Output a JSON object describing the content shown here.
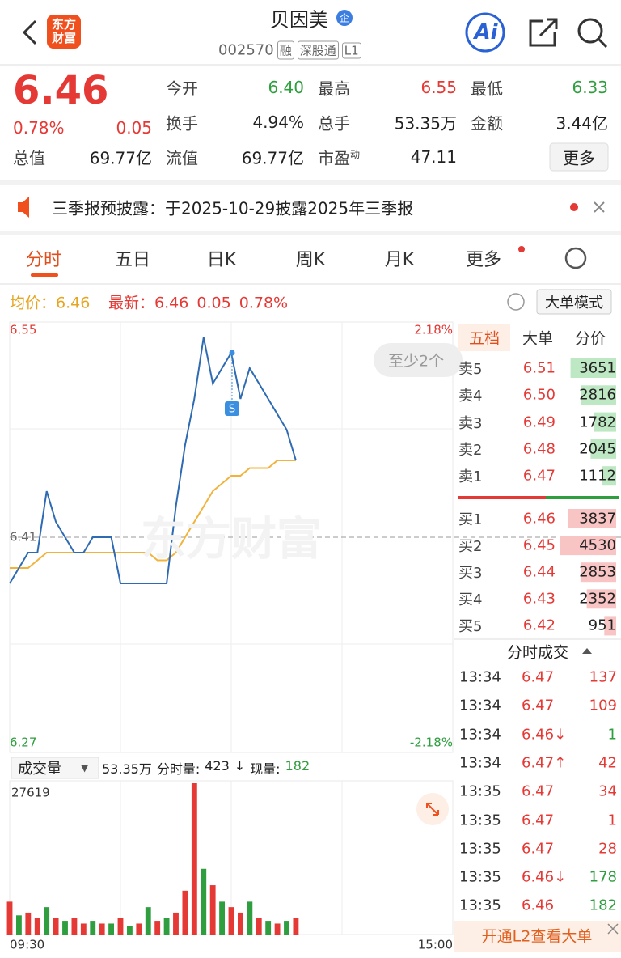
{
  "header": {
    "logo": "东方财富",
    "title": "贝因美",
    "badge": "企",
    "code": "002570",
    "tags": [
      "融",
      "深股通",
      "L1"
    ],
    "ai": "Ai"
  },
  "quote": {
    "price": "6.46",
    "change_pct": "0.78%",
    "change": "0.05",
    "more": "更多",
    "fields": [
      {
        "label": "今开",
        "value": "6.40",
        "color": "#2e9e3e"
      },
      {
        "label": "最高",
        "value": "6.55",
        "color": "#e53935"
      },
      {
        "label": "最低",
        "value": "6.33",
        "color": "#2e9e3e"
      },
      {
        "label": "换手",
        "value": "4.94%"
      },
      {
        "label": "总手",
        "value": "53.35万"
      },
      {
        "label": "金额",
        "value": "3.44亿"
      },
      {
        "label": "总值",
        "value": "69.77亿"
      },
      {
        "label": "流值",
        "value": "69.77亿"
      },
      {
        "label": "市盈",
        "sup": "动",
        "value": "47.11"
      }
    ]
  },
  "notice": "三季报预披露：于2025-10-29披露2025年三季报",
  "tabs": [
    "分时",
    "五日",
    "日K",
    "周K",
    "月K",
    "更多"
  ],
  "info": {
    "avg_label": "均价：",
    "avg": "6.46",
    "last_label": "最新：",
    "last": "6.46",
    "change": "0.05",
    "pct": "0.78%",
    "mode": "大单模式"
  },
  "toast": "至少2个",
  "watermark": "东方财富",
  "chart_data": [
    {
      "type": "line",
      "ylim": [
        6.27,
        6.55
      ],
      "yticks": [
        6.55,
        6.41,
        6.27
      ],
      "y2lim": [
        -2.18,
        2.18
      ],
      "y2ticks": [
        {
          "value": 2.18,
          "label": "2.18%"
        },
        {
          "value": -2.18,
          "label": "-2.18%"
        }
      ],
      "series": [
        {
          "color": "#2f6bb3",
          "values": [
            6.38,
            6.39,
            6.4,
            6.4,
            6.44,
            6.42,
            6.41,
            6.4,
            6.4,
            6.41,
            6.41,
            6.41,
            6.38,
            6.38,
            6.38,
            6.38,
            6.38,
            6.38,
            6.43,
            6.47,
            6.5,
            6.54,
            6.51,
            6.52,
            6.53,
            6.5,
            6.52,
            6.51,
            6.5,
            6.49,
            6.48,
            6.46,
            null,
            null,
            null,
            null,
            null,
            null,
            null,
            null,
            null,
            null,
            null,
            null,
            null,
            null,
            null,
            null,
            null
          ]
        },
        {
          "color": "#f2b33d",
          "values": [
            6.39,
            6.39,
            6.39,
            6.395,
            6.4,
            6.4,
            6.4,
            6.4,
            6.4,
            6.4,
            6.4,
            6.4,
            6.4,
            6.4,
            6.4,
            6.4,
            6.395,
            6.395,
            6.4,
            6.41,
            6.42,
            6.43,
            6.44,
            6.445,
            6.45,
            6.45,
            6.455,
            6.455,
            6.455,
            6.46,
            6.46,
            6.46,
            null,
            null,
            null,
            null,
            null,
            null,
            null,
            null,
            null,
            null,
            null,
            null,
            null,
            null,
            null,
            null,
            null
          ]
        }
      ]
    },
    {
      "type": "bar",
      "title": "成交量",
      "ylim": [
        0,
        27619
      ],
      "yticks": [
        27619
      ],
      "categories": [
        "09:30",
        null,
        null,
        null,
        null,
        null,
        null,
        null,
        null,
        null,
        null,
        null,
        null,
        null,
        null,
        null,
        null,
        null,
        null,
        null,
        null,
        null,
        null,
        null,
        null,
        null,
        null,
        null,
        null,
        null,
        null,
        null,
        null,
        null,
        null,
        null,
        null,
        null,
        null,
        null,
        null,
        null,
        null,
        null,
        null,
        null,
        null,
        null,
        "15:00"
      ],
      "values": [
        6000,
        3500,
        4000,
        3000,
        5000,
        3000,
        2500,
        3000,
        2000,
        2500,
        2000,
        2000,
        3000,
        1500,
        2000,
        5000,
        2500,
        3000,
        4000,
        8000,
        27619,
        12000,
        9000,
        6000,
        5000,
        4000,
        6000,
        3000,
        2500,
        2000,
        2500,
        3000,
        null,
        null,
        null,
        null,
        null,
        null,
        null,
        null,
        null,
        null,
        null,
        null,
        null,
        null,
        null,
        null,
        null
      ],
      "colors": [
        "#e53935",
        "#2e9e3e",
        "#e53935",
        "#e53935",
        "#2e9e3e",
        "#e53935",
        "#2e9e3e",
        "#e53935",
        "#e53935",
        "#2e9e3e",
        "#e53935",
        "#2e9e3e",
        "#e53935",
        "#2e9e3e",
        "#e53935",
        "#2e9e3e",
        "#e53935",
        "#2e9e3e",
        "#e53935",
        "#e53935",
        "#e53935",
        "#2e9e3e",
        "#e53935",
        "#2e9e3e",
        "#e53935",
        "#e53935",
        "#2e9e3e",
        "#e53935",
        "#2e9e3e",
        "#e53935",
        "#2e9e3e",
        "#e53935",
        null,
        null,
        null,
        null,
        null,
        null,
        null,
        null,
        null,
        null,
        null,
        null,
        null,
        null,
        null,
        null,
        null
      ]
    }
  ],
  "volume_summary": {
    "total": "53.35万",
    "period_label": "分时量:",
    "period": "423",
    "arrow": "↓",
    "now_label": "现量:",
    "now": "182"
  },
  "book": {
    "tabs": [
      "五档",
      "大单",
      "分价"
    ],
    "asks": [
      {
        "label": "卖5",
        "price": "6.51",
        "volume": 3651
      },
      {
        "label": "卖4",
        "price": "6.50",
        "volume": 2816
      },
      {
        "label": "卖3",
        "price": "6.49",
        "volume": 1782
      },
      {
        "label": "卖2",
        "price": "6.48",
        "volume": 2045
      },
      {
        "label": "卖1",
        "price": "6.47",
        "volume": 1112
      }
    ],
    "bids": [
      {
        "label": "买1",
        "price": "6.46",
        "volume": 3837
      },
      {
        "label": "买2",
        "price": "6.45",
        "volume": 4530
      },
      {
        "label": "买3",
        "price": "6.44",
        "volume": 2853
      },
      {
        "label": "买4",
        "price": "6.43",
        "volume": 2352
      },
      {
        "label": "买5",
        "price": "6.42",
        "volume": 951
      }
    ]
  },
  "trades": {
    "title": "分时成交",
    "rows": [
      {
        "time": "13:34",
        "price": "6.47",
        "volume": 137,
        "color": "#e53935"
      },
      {
        "time": "13:34",
        "price": "6.47",
        "volume": 109,
        "color": "#e53935"
      },
      {
        "time": "13:34",
        "price": "6.46↓",
        "volume": 1,
        "color": "#2e9e3e"
      },
      {
        "time": "13:34",
        "price": "6.47↑",
        "volume": 42,
        "color": "#e53935"
      },
      {
        "time": "13:35",
        "price": "6.47",
        "volume": 34,
        "color": "#e53935"
      },
      {
        "time": "13:35",
        "price": "6.47",
        "volume": 1,
        "color": "#e53935"
      },
      {
        "time": "13:35",
        "price": "6.47",
        "volume": 28,
        "color": "#e53935"
      },
      {
        "time": "13:35",
        "price": "6.46↓",
        "volume": 178,
        "color": "#2e9e3e"
      },
      {
        "time": "13:35",
        "price": "6.46",
        "volume": 182,
        "color": "#2e9e3e"
      }
    ]
  },
  "footer": "开通L2查看大单"
}
